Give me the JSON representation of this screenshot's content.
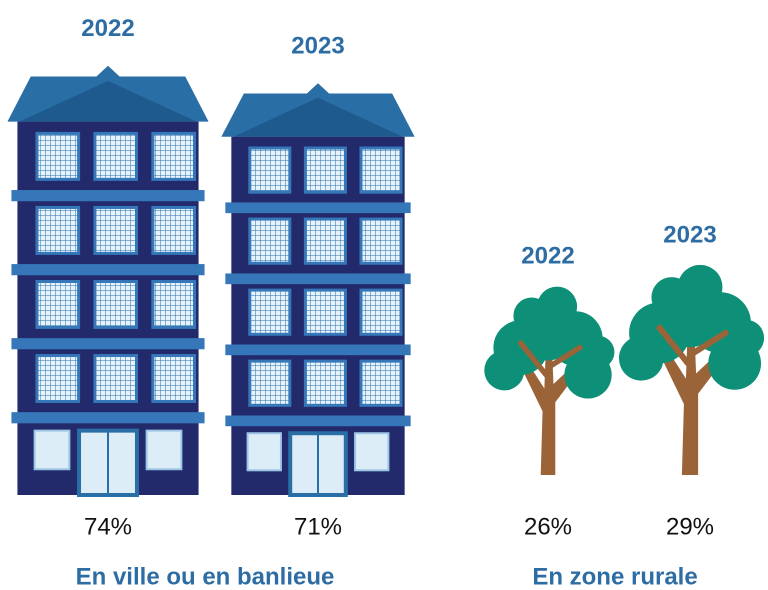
{
  "chart_data": {
    "type": "pictogram",
    "groups": [
      {
        "name": "En ville ou en banlieue",
        "icon": "building",
        "categories": [
          "2022",
          "2023"
        ],
        "values": [
          74,
          71
        ],
        "value_labels": [
          "74%",
          "71%"
        ]
      },
      {
        "name": "En zone rurale",
        "icon": "tree",
        "categories": [
          "2022",
          "2023"
        ],
        "values": [
          26,
          29
        ],
        "value_labels": [
          "26%",
          "29%"
        ]
      }
    ]
  }
}
